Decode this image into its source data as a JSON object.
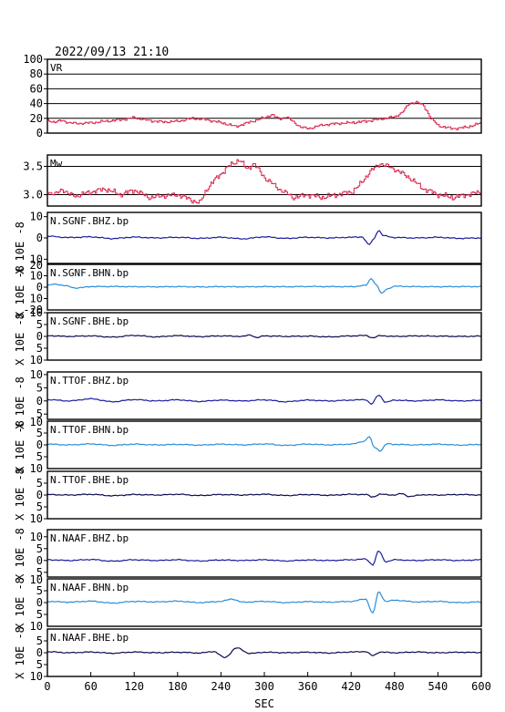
{
  "header": {
    "timestamp": "2022/09/13 21:10"
  },
  "x_axis": {
    "label": "SEC",
    "ticks": [
      0,
      60,
      120,
      180,
      240,
      300,
      360,
      420,
      480,
      540,
      600
    ],
    "range": [
      0,
      600
    ]
  },
  "colors": {
    "vr_line": "#d8244a",
    "mw_line": "#d8244a",
    "bhz": "#1a1aa0",
    "bhn": "#2b8ed8",
    "bhe": "#0a0a50"
  },
  "chart_data": [
    {
      "type": "line",
      "name": "VR",
      "label": "VR",
      "ylim": [
        0,
        100
      ],
      "yticks": [
        0,
        20,
        40,
        60,
        80,
        100
      ],
      "grid": true,
      "x": [
        0,
        10,
        20,
        30,
        40,
        60,
        80,
        100,
        120,
        140,
        160,
        180,
        200,
        220,
        240,
        260,
        280,
        300,
        310,
        320,
        330,
        340,
        350,
        360,
        380,
        400,
        420,
        440,
        460,
        480,
        490,
        500,
        510,
        520,
        530,
        540,
        560,
        580,
        600
      ],
      "y": [
        17,
        15,
        17,
        14,
        13,
        14,
        16,
        18,
        21,
        17,
        15,
        16,
        20,
        18,
        14,
        9,
        15,
        21,
        25,
        19,
        22,
        15,
        8,
        6,
        11,
        13,
        14,
        16,
        19,
        22,
        28,
        40,
        42,
        37,
        20,
        10,
        6,
        8,
        14
      ]
    },
    {
      "type": "line",
      "name": "Mw",
      "label": "Mw",
      "ylim": [
        2.8,
        3.7
      ],
      "yticks": [
        3.0,
        3.5
      ],
      "ytick_labels": [
        "3.0",
        "3.5"
      ],
      "grid": true,
      "x": [
        0,
        10,
        20,
        30,
        40,
        60,
        80,
        100,
        120,
        140,
        160,
        180,
        200,
        210,
        220,
        230,
        250,
        265,
        275,
        285,
        300,
        320,
        340,
        360,
        380,
        400,
        420,
        430,
        445,
        460,
        470,
        480,
        500,
        520,
        540,
        560,
        580,
        600
      ],
      "y": [
        3.05,
        3.0,
        3.1,
        3.0,
        2.98,
        3.05,
        3.1,
        3.0,
        3.08,
        2.95,
        2.98,
        3.0,
        2.9,
        2.85,
        3.1,
        3.25,
        3.5,
        3.62,
        3.45,
        3.55,
        3.3,
        3.1,
        2.95,
        3.0,
        2.95,
        3.0,
        3.05,
        3.15,
        3.4,
        3.55,
        3.5,
        3.45,
        3.3,
        3.1,
        3.0,
        2.95,
        3.0,
        3.05
      ]
    },
    {
      "type": "line",
      "name": "N.SGNF.BHZ.bp",
      "label": "N.SGNF.BHZ.bp",
      "ylim": [
        -12,
        12
      ],
      "yticks": [
        -10,
        0,
        10
      ],
      "ytick_labels": [
        "10",
        "0",
        "10"
      ],
      "trace_color": "#1a1aa0",
      "x": [
        0,
        30,
        60,
        90,
        120,
        150,
        180,
        210,
        240,
        270,
        300,
        330,
        360,
        390,
        420,
        435,
        445,
        450,
        458,
        465,
        480,
        510,
        540,
        570,
        600
      ],
      "y": [
        0.8,
        0.2,
        0.5,
        -0.3,
        0.4,
        0.0,
        0.3,
        -0.2,
        0.3,
        -0.4,
        0.5,
        -0.2,
        0.3,
        0.0,
        0.3,
        0.5,
        -3.2,
        -1.0,
        3.5,
        1.0,
        0.2,
        0.0,
        0.3,
        -0.2,
        0.0
      ]
    },
    {
      "type": "line",
      "name": "N.SGNF.BHN.bp",
      "label": "N.SGNF.BHN.bp",
      "ylim": [
        -20,
        20
      ],
      "yticks": [
        -10,
        0,
        10
      ],
      "ytick_labels": [
        "10",
        "0",
        "10"
      ],
      "extra_tick_labels": [
        "-20",
        "20"
      ],
      "trace_color": "#2b8ed8",
      "x": [
        0,
        10,
        25,
        40,
        60,
        90,
        120,
        150,
        180,
        210,
        240,
        270,
        300,
        330,
        360,
        390,
        420,
        440,
        448,
        455,
        462,
        470,
        480,
        510,
        540,
        570,
        600
      ],
      "y": [
        1.5,
        2.8,
        1.2,
        -0.8,
        0.5,
        0.6,
        0.4,
        0.3,
        0.5,
        0.2,
        0.5,
        0.3,
        0.5,
        0.4,
        0.6,
        0.5,
        0.4,
        1.5,
        7.5,
        2.0,
        -5.5,
        -1.5,
        0.8,
        0.5,
        0.4,
        0.5,
        0.5
      ]
    },
    {
      "type": "line",
      "name": "N.SGNF.BHE.bp",
      "label": "N.SGNF.BHE.bp",
      "ylim": [
        -10,
        10
      ],
      "yticks": [
        -10,
        -5,
        0,
        5,
        10
      ],
      "ytick_labels": [
        "10",
        "5",
        "0",
        "5",
        "10"
      ],
      "trace_color": "#0a0a50",
      "x": [
        0,
        30,
        60,
        90,
        120,
        150,
        180,
        210,
        240,
        270,
        280,
        290,
        300,
        330,
        360,
        390,
        420,
        440,
        450,
        460,
        480,
        510,
        540,
        570,
        600
      ],
      "y": [
        0.3,
        0.0,
        0.2,
        -0.3,
        0.4,
        -0.2,
        0.3,
        -0.1,
        0.2,
        0.0,
        0.6,
        -0.5,
        0.2,
        0.0,
        0.1,
        -0.2,
        0.2,
        0.4,
        -0.6,
        0.3,
        0.0,
        0.2,
        0.1,
        0.0,
        0.1
      ]
    },
    {
      "type": "line",
      "name": "N.TTOF.BHZ.bp",
      "label": "N.TTOF.BHZ.bp",
      "ylim": [
        -7,
        11
      ],
      "yticks": [
        -5,
        0,
        5,
        10
      ],
      "ytick_labels": [
        "5",
        "0",
        "5",
        "10"
      ],
      "trace_color": "#1a1aa0",
      "x": [
        0,
        30,
        60,
        90,
        120,
        150,
        180,
        210,
        240,
        270,
        300,
        330,
        360,
        390,
        420,
        440,
        448,
        458,
        468,
        480,
        510,
        540,
        570,
        600
      ],
      "y": [
        0.5,
        0.0,
        0.8,
        -0.3,
        0.5,
        0.0,
        0.4,
        -0.2,
        0.3,
        0.0,
        0.4,
        -0.3,
        0.3,
        0.0,
        0.3,
        0.5,
        -1.2,
        2.2,
        -0.5,
        0.3,
        0.0,
        0.4,
        0.0,
        0.2
      ]
    },
    {
      "type": "line",
      "name": "N.TTOF.BHN.bp",
      "label": "N.TTOF.BHN.bp",
      "ylim": [
        -10,
        10
      ],
      "yticks": [
        -5,
        0,
        5
      ],
      "ytick_labels": [
        "5",
        "0",
        "5"
      ],
      "extra_tick_labels": [
        "10",
        "10"
      ],
      "trace_color": "#2b8ed8",
      "x": [
        0,
        30,
        60,
        90,
        120,
        150,
        180,
        210,
        240,
        270,
        300,
        330,
        360,
        390,
        420,
        438,
        445,
        452,
        460,
        470,
        480,
        510,
        540,
        570,
        600
      ],
      "y": [
        0.3,
        0.0,
        0.4,
        -0.2,
        0.3,
        0.0,
        0.2,
        -0.1,
        0.3,
        0.0,
        0.4,
        -0.2,
        0.3,
        0.0,
        0.3,
        1.5,
        3.5,
        -1.0,
        -2.5,
        0.5,
        0.2,
        0.0,
        0.3,
        -0.1,
        0.2
      ]
    },
    {
      "type": "line",
      "name": "N.TTOF.BHE.bp",
      "label": "N.TTOF.BHE.bp",
      "ylim": [
        -10,
        10
      ],
      "yticks": [
        -10,
        -5,
        0,
        5
      ],
      "ytick_labels": [
        "10",
        "5",
        "0",
        "5"
      ],
      "trace_color": "#0a0a50",
      "x": [
        0,
        30,
        60,
        90,
        120,
        150,
        180,
        210,
        240,
        270,
        300,
        330,
        360,
        390,
        420,
        440,
        450,
        460,
        480,
        490,
        500,
        520,
        540,
        570,
        600
      ],
      "y": [
        0.2,
        0.0,
        0.3,
        -0.3,
        0.2,
        0.0,
        0.3,
        -0.2,
        0.2,
        0.0,
        0.3,
        -0.2,
        0.2,
        -0.1,
        0.3,
        0.2,
        -0.8,
        0.3,
        0.0,
        0.6,
        -0.6,
        0.1,
        0.0,
        0.2,
        0.0
      ]
    },
    {
      "type": "line",
      "name": "N.NAAF.BHZ.bp",
      "label": "N.NAAF.BHZ.bp",
      "ylim": [
        -7,
        13
      ],
      "yticks": [
        -5,
        0,
        5,
        10
      ],
      "ytick_labels": [
        "5",
        "0",
        "5",
        "10"
      ],
      "trace_color": "#1a1aa0",
      "x": [
        0,
        30,
        60,
        90,
        120,
        150,
        180,
        210,
        240,
        270,
        300,
        330,
        360,
        390,
        420,
        440,
        450,
        458,
        468,
        480,
        510,
        540,
        570,
        600
      ],
      "y": [
        0.3,
        0.0,
        0.4,
        -0.3,
        0.3,
        0.0,
        0.3,
        -0.2,
        0.2,
        0.0,
        0.3,
        -0.2,
        0.2,
        0.0,
        0.3,
        0.6,
        -1.8,
        4.0,
        -0.5,
        0.3,
        0.0,
        0.3,
        0.0,
        0.3
      ]
    },
    {
      "type": "line",
      "name": "N.NAAF.BHN.bp",
      "label": "N.NAAF.BHN.bp",
      "ylim": [
        -10,
        10
      ],
      "yticks": [
        -5,
        0,
        5
      ],
      "ytick_labels": [
        "5",
        "0",
        "5"
      ],
      "extra_tick_labels": [
        "10",
        "10"
      ],
      "trace_color": "#2b8ed8",
      "x": [
        0,
        30,
        60,
        90,
        120,
        150,
        180,
        210,
        240,
        255,
        270,
        300,
        330,
        360,
        390,
        420,
        440,
        450,
        458,
        468,
        480,
        510,
        540,
        570,
        600
      ],
      "y": [
        0.5,
        0.2,
        0.6,
        -0.2,
        0.5,
        0.3,
        0.6,
        0.0,
        0.5,
        1.5,
        0.2,
        0.5,
        0.0,
        0.4,
        0.2,
        0.5,
        1.5,
        -4.5,
        4.5,
        0.5,
        1.0,
        0.3,
        0.5,
        0.0,
        0.3
      ]
    },
    {
      "type": "line",
      "name": "N.NAAF.BHE.bp",
      "label": "N.NAAF.BHE.bp",
      "ylim": [
        -10,
        10
      ],
      "yticks": [
        -10,
        -5,
        0,
        5
      ],
      "ytick_labels": [
        "10",
        "5",
        "0",
        "5"
      ],
      "trace_color": "#0a0a50",
      "x": [
        0,
        30,
        60,
        90,
        120,
        150,
        180,
        210,
        230,
        245,
        262,
        280,
        300,
        330,
        360,
        390,
        420,
        440,
        450,
        460,
        480,
        510,
        540,
        570,
        600
      ],
      "y": [
        0.4,
        0.0,
        0.3,
        -0.2,
        0.3,
        0.0,
        0.2,
        -0.1,
        0.5,
        -2.0,
        2.0,
        -0.3,
        0.2,
        0.0,
        0.2,
        -0.1,
        0.3,
        0.5,
        -1.2,
        0.3,
        0.0,
        0.3,
        0.0,
        0.2,
        0.1
      ]
    }
  ],
  "y_axis_group_labels": [
    "X 10E -8",
    "X 10E -8",
    "X 10E -8",
    "X 10E -8",
    "X 10E -8",
    "X 10E -8",
    "X 10E -8",
    "X 10E -8",
    "X 10E -8"
  ]
}
